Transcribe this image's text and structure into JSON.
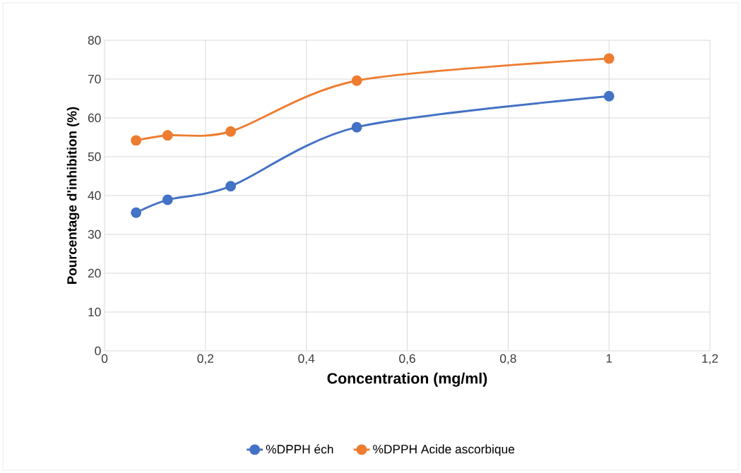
{
  "chart_data": {
    "type": "line",
    "xlabel": "Concentration (mg/ml)",
    "ylabel": "Pourcentage d'inhibition (%)",
    "x": [
      0.0625,
      0.125,
      0.25,
      0.5,
      1
    ],
    "series": [
      {
        "name": "%DPPH éch",
        "color": "#4472c4",
        "values": [
          35.6,
          38.9,
          42.4,
          57.6,
          65.6
        ]
      },
      {
        "name": "%DPPH Acide ascorbique",
        "color": "#ed7d31",
        "values": [
          54.2,
          55.5,
          56.5,
          69.6,
          75.3
        ]
      }
    ],
    "xlim": [
      0,
      1.2
    ],
    "ylim": [
      0,
      80
    ],
    "xticks": [
      0,
      {
        "value": 0.2,
        "label": "0,2"
      },
      {
        "value": 0.4,
        "label": "0,4"
      },
      {
        "value": 0.6,
        "label": "0,6"
      },
      {
        "value": 0.8,
        "label": "0,8"
      },
      1,
      {
        "value": 1.2,
        "label": "1,2"
      }
    ],
    "yticks": [
      0,
      10,
      20,
      30,
      40,
      50,
      60,
      70,
      80
    ],
    "grid": true,
    "legend": "bottom",
    "marker": "circle",
    "line_style": "solid"
  }
}
